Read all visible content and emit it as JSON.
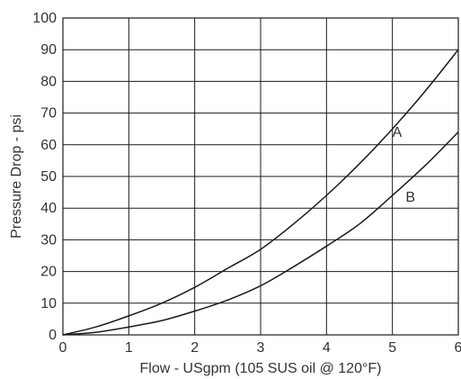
{
  "chart_data": {
    "type": "line",
    "xlabel": "Flow - USgpm (105 SUS oil @ 120°F)",
    "ylabel": "Pressure Drop - psi",
    "xlim": [
      0,
      6
    ],
    "ylim": [
      0,
      100
    ],
    "x_ticks": [
      "0",
      "1",
      "2",
      "3",
      "4",
      "5",
      "6"
    ],
    "y_ticks": [
      "0",
      "10",
      "20",
      "30",
      "40",
      "50",
      "60",
      "70",
      "80",
      "90",
      "100"
    ],
    "grid": true,
    "series": [
      {
        "name": "A",
        "x": [
          0,
          0.5,
          1,
          1.5,
          2,
          2.5,
          3,
          3.5,
          4,
          4.5,
          5,
          5.5,
          6
        ],
        "y": [
          0,
          2.5,
          6,
          10,
          15,
          21,
          27,
          35,
          44,
          54,
          65,
          77,
          90
        ]
      },
      {
        "name": "B",
        "x": [
          0,
          0.5,
          1,
          1.5,
          2,
          2.5,
          3,
          3.5,
          4,
          4.5,
          5,
          5.5,
          6
        ],
        "y": [
          0,
          0.8,
          2.5,
          4.5,
          7.5,
          11,
          15.5,
          21.5,
          28,
          35,
          44,
          53.5,
          64
        ]
      }
    ]
  }
}
